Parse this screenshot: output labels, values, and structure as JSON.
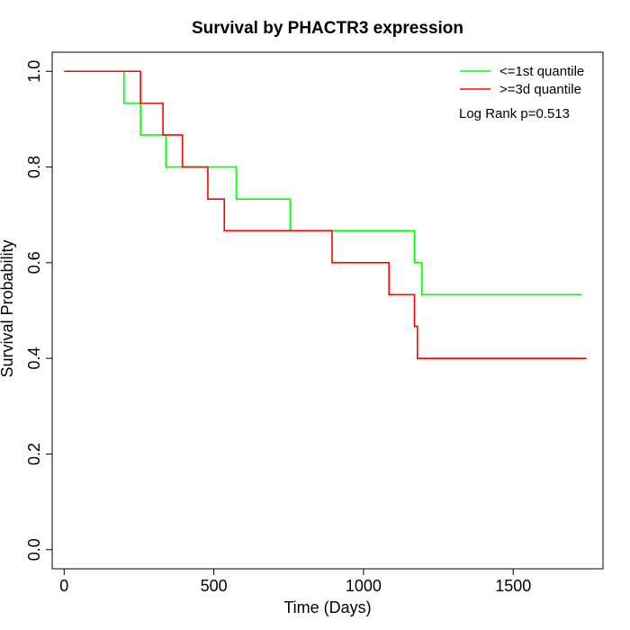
{
  "chart_data": {
    "type": "line",
    "title": "Survival by PHACTR3 expression",
    "xlabel": "Time (Days)",
    "ylabel": "Survival Probability",
    "xlim": [
      -40,
      1800
    ],
    "ylim": [
      -0.04,
      1.04
    ],
    "xticks": [
      0,
      500,
      1000,
      1500
    ],
    "yticks": [
      0.0,
      0.2,
      0.4,
      0.6,
      0.8,
      1.0
    ],
    "xtick_labels": [
      "0",
      "500",
      "1000",
      "1500"
    ],
    "ytick_labels": [
      "0.0",
      "0.2",
      "0.4",
      "0.6",
      "0.8",
      "1.0"
    ],
    "legend_position": "top-right",
    "annotation": "Log Rank p=0.513",
    "grid": false,
    "series": [
      {
        "name": "<=1st quantile",
        "color": "#00ff00",
        "x": [
          0,
          200,
          255,
          340,
          575,
          755,
          1170,
          1195,
          1730
        ],
        "y": [
          1.0,
          0.933,
          0.867,
          0.8,
          0.733,
          0.667,
          0.6,
          0.533,
          0.533
        ]
      },
      {
        "name": ">=3d quantile",
        "color": "#ff0000",
        "x": [
          0,
          255,
          330,
          395,
          480,
          535,
          895,
          1085,
          1170,
          1180,
          1745
        ],
        "y": [
          1.0,
          0.933,
          0.867,
          0.8,
          0.733,
          0.667,
          0.6,
          0.533,
          0.467,
          0.4,
          0.4
        ]
      }
    ]
  }
}
